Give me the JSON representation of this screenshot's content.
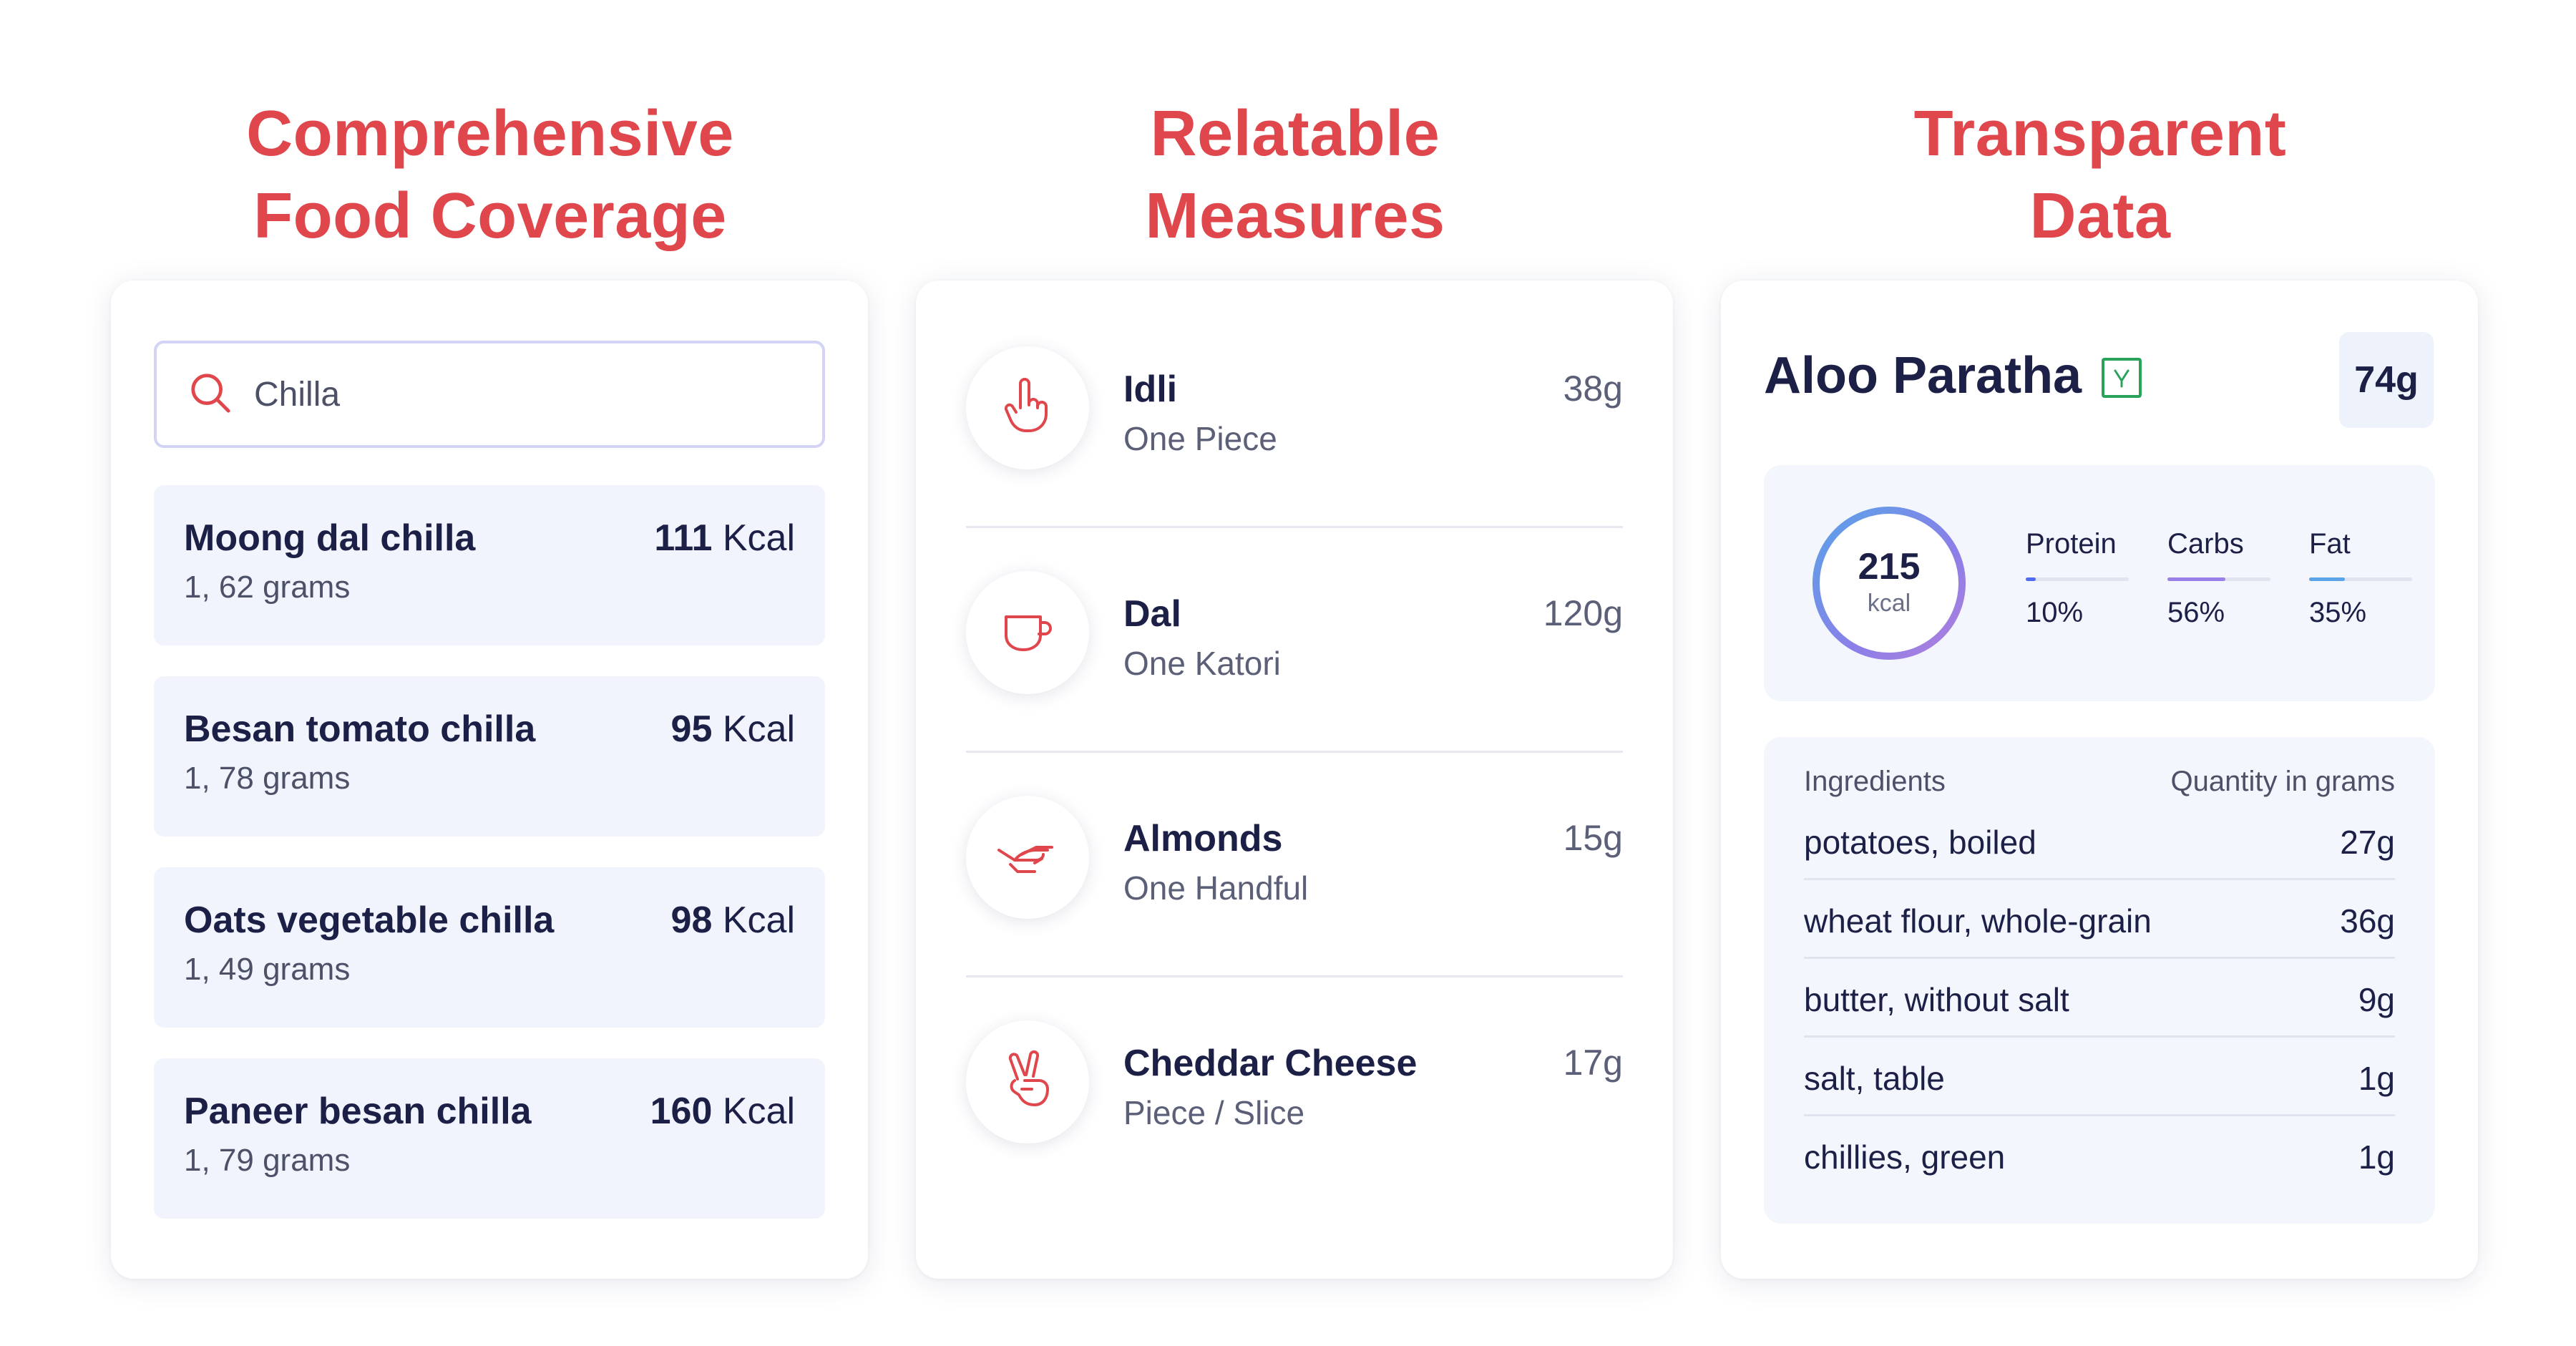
{
  "headings": {
    "coverage": [
      "Comprehensive",
      "Food Coverage"
    ],
    "measures": [
      "Relatable",
      "Measures"
    ],
    "transparent": [
      "Transparent",
      "Data"
    ]
  },
  "colors": {
    "accent": "#e0474c",
    "text_primary": "#1c2046",
    "item_bg": "#f1f4fd",
    "veg_green": "#29a35a",
    "protein_bar": "#4f6cf0",
    "carbs_bar": "#9a7fe8",
    "fat_bar": "#5aa3e8"
  },
  "search": {
    "icon": "search-icon",
    "value": "Chilla"
  },
  "food_results": [
    {
      "name": "Moong dal chilla",
      "sub": "1, 62 grams",
      "kcal_value": "111",
      "kcal_unit": " Kcal"
    },
    {
      "name": "Besan tomato chilla",
      "sub": "1, 78 grams",
      "kcal_value": "95",
      "kcal_unit": " Kcal"
    },
    {
      "name": "Oats vegetable chilla",
      "sub": "1, 49 grams",
      "kcal_value": "98",
      "kcal_unit": " Kcal"
    },
    {
      "name": "Paneer besan chilla",
      "sub": "1, 79 grams",
      "kcal_value": "160",
      "kcal_unit": " Kcal"
    }
  ],
  "measures": [
    {
      "name": "Idli",
      "desc": "One Piece",
      "weight": "38g",
      "icon": "pointing-finger-icon"
    },
    {
      "name": "Dal",
      "desc": "One Katori",
      "weight": "120g",
      "icon": "bowl-cup-icon"
    },
    {
      "name": "Almonds",
      "desc": "One Handful",
      "weight": "15g",
      "icon": "open-hand-icon"
    },
    {
      "name": "Cheddar Cheese",
      "desc": "Piece / Slice",
      "weight": "17g",
      "icon": "two-fingers-icon"
    }
  ],
  "dish": {
    "title": "Aloo Paratha",
    "veg_icon": "veg-mark-icon",
    "weight": "74g",
    "kcal": "215",
    "kcal_unit": "kcal",
    "macros": [
      {
        "label": "Protein",
        "percent": "10%",
        "fraction": 0.1
      },
      {
        "label": "Carbs",
        "percent": "56%",
        "fraction": 0.56
      },
      {
        "label": "Fat",
        "percent": "35%",
        "fraction": 0.35
      }
    ],
    "ingredients_header": "Ingredients",
    "quantity_header": "Quantity in grams",
    "ingredients": [
      {
        "name": "potatoes, boiled",
        "qty": "27g"
      },
      {
        "name": "wheat flour, whole-grain",
        "qty": "36g"
      },
      {
        "name": "butter, without salt",
        "qty": "9g"
      },
      {
        "name": "salt, table",
        "qty": "1g"
      },
      {
        "name": "chillies, green",
        "qty": "1g"
      }
    ]
  }
}
